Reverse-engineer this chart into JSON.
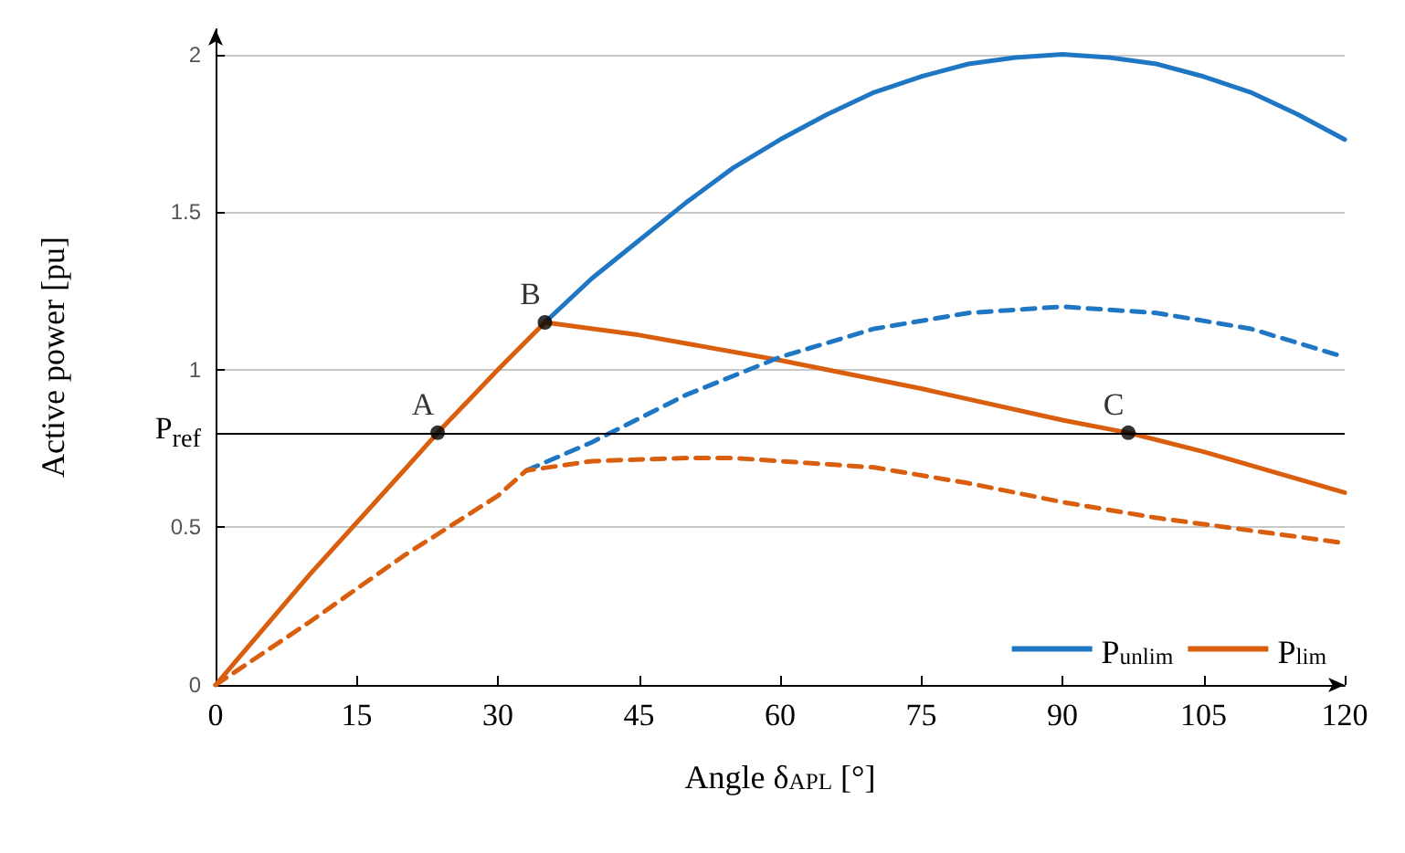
{
  "chart_data": {
    "type": "line",
    "xlabel": "Angle δ$_{APL}$ [°]",
    "ylabel": "Active power [pu]",
    "xlim": [
      0,
      120
    ],
    "xticks": [
      0,
      15,
      30,
      45,
      60,
      75,
      90,
      105,
      120
    ],
    "ylim": [
      0,
      2.08
    ],
    "yticks": [
      0,
      0.5,
      {
        "value": 0.8,
        "label": "P$_{ref}$"
      },
      1,
      1.5,
      2
    ],
    "grid": "y",
    "legend": "bottom right",
    "marker": "none",
    "series": [
      {
        "name": "P$_{unlim}$",
        "color": "#1f77c4",
        "line_style": "solid",
        "x": [
          35,
          40,
          45,
          50,
          55,
          60,
          65,
          70,
          75,
          80,
          85,
          90,
          95,
          100,
          105,
          110,
          115,
          120
        ],
        "values": [
          1.15,
          1.29,
          1.41,
          1.53,
          1.64,
          1.73,
          1.81,
          1.88,
          1.93,
          1.97,
          1.99,
          2.0,
          1.99,
          1.97,
          1.93,
          1.88,
          1.81,
          1.73
        ]
      },
      {
        "name": "P$_{lim}$",
        "color": "#d95f0e",
        "line_style": "solid",
        "x": [
          0,
          10,
          20,
          23.6,
          30,
          35,
          45,
          60,
          75,
          90,
          97,
          105,
          120
        ],
        "values": [
          0,
          0.35,
          0.68,
          0.8,
          1.0,
          1.15,
          1.11,
          1.03,
          0.94,
          0.84,
          0.8,
          0.74,
          0.61
        ]
      },
      {
        "color": "#1f77c4",
        "line_style": "dashed",
        "x": [
          33,
          40,
          50,
          60,
          70,
          80,
          90,
          100,
          110,
          120
        ],
        "values": [
          0.68,
          0.77,
          0.92,
          1.04,
          1.13,
          1.18,
          1.2,
          1.18,
          1.13,
          1.04
        ]
      },
      {
        "color": "#d95f0e",
        "line_style": "dashed",
        "x": [
          0,
          10,
          20,
          30,
          33,
          40,
          50,
          55,
          60,
          70,
          80,
          90,
          100,
          110,
          120
        ],
        "values": [
          0,
          0.2,
          0.41,
          0.6,
          0.68,
          0.71,
          0.72,
          0.72,
          0.71,
          0.69,
          0.64,
          0.58,
          0.53,
          0.49,
          0.45
        ]
      },
      {
        "type": "scatter",
        "marker": "circle",
        "color": "#000000",
        "x": [
          23.6,
          35,
          97
        ],
        "values": [
          0.8,
          1.15,
          0.8
        ]
      }
    ],
    "ref_lines": [
      {
        "axis": "y",
        "value": 0.8,
        "color": "#000000"
      }
    ],
    "annotations": [
      {
        "text": "A",
        "x": 23.6,
        "y": 0.8
      },
      {
        "text": "B",
        "x": 35,
        "y": 1.15
      },
      {
        "text": "C",
        "x": 97,
        "y": 0.8
      }
    ]
  }
}
